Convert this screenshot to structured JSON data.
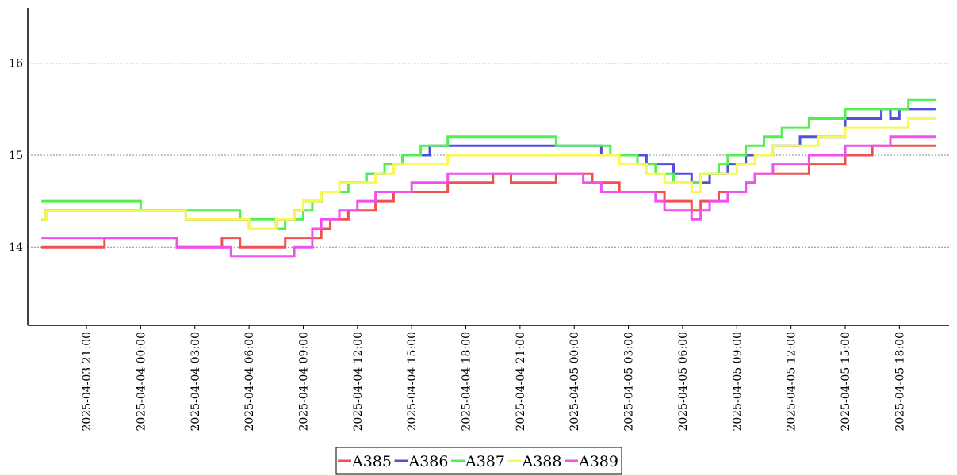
{
  "chart_data": {
    "type": "line",
    "line_shape": "step",
    "title": "",
    "xlabel": "",
    "ylabel": "",
    "ylim": [
      13.15,
      16.6
    ],
    "y_ticks": [
      14,
      15,
      16
    ],
    "y_tick_labels": [
      "14",
      "15",
      "16"
    ],
    "x_ticks": [
      "2025-04-03 21:00",
      "2025-04-04 00:00",
      "2025-04-04 03:00",
      "2025-04-04 06:00",
      "2025-04-04 09:00",
      "2025-04-04 12:00",
      "2025-04-04 15:00",
      "2025-04-04 18:00",
      "2025-04-04 21:00",
      "2025-04-05 00:00",
      "2025-04-05 03:00",
      "2025-04-05 06:00",
      "2025-04-05 09:00",
      "2025-04-05 12:00",
      "2025-04-05 15:00",
      "2025-04-05 18:00"
    ],
    "x_tick_labels": [
      "2025-04-03  21:00",
      "2025-04-04  00:00",
      "2025-04-04  03:00",
      "2025-04-04  06:00",
      "2025-04-04  09:00",
      "2025-04-04  12:00",
      "2025-04-04  15:00",
      "2025-04-04  18:00",
      "2025-04-04  21:00",
      "2025-04-05  00:00",
      "2025-04-05  03:00",
      "2025-04-05  06:00",
      "2025-04-05  09:00",
      "2025-04-05  12:00",
      "2025-04-05  15:00",
      "2025-04-05  18:00"
    ],
    "xlim": [
      "2025-04-03 17:45",
      "2025-04-05 20:45"
    ],
    "grid": "horizontal dotted",
    "legend_position": "bottom-center",
    "series": [
      {
        "name": "A385",
        "color": "#f05050",
        "x": [
          "2025-04-03 18:30",
          "2025-04-03 22:00",
          "2025-04-04 01:30",
          "2025-04-04 02:00",
          "2025-04-04 04:00",
          "2025-04-04 04:30",
          "2025-04-04 05:30",
          "2025-04-04 07:30",
          "2025-04-04 08:00",
          "2025-04-04 09:30",
          "2025-04-04 10:00",
          "2025-04-04 10:30",
          "2025-04-04 11:30",
          "2025-04-04 13:00",
          "2025-04-04 14:00",
          "2025-04-04 15:30",
          "2025-04-04 17:00",
          "2025-04-04 19:30",
          "2025-04-04 20:30",
          "2025-04-04 23:00",
          "2025-04-05 01:00",
          "2025-04-05 02:30",
          "2025-04-05 05:00",
          "2025-04-05 06:00",
          "2025-04-05 06:30",
          "2025-04-05 07:00",
          "2025-04-05 07:30",
          "2025-04-05 08:00",
          "2025-04-05 08:30",
          "2025-04-05 09:30",
          "2025-04-05 10:00",
          "2025-04-05 11:30",
          "2025-04-05 13:00",
          "2025-04-05 14:00",
          "2025-04-05 15:00",
          "2025-04-05 16:30",
          "2025-04-05 17:30",
          "2025-04-05 20:00"
        ],
        "values": [
          14.0,
          14.1,
          14.1,
          14.0,
          14.0,
          14.1,
          14.0,
          14.0,
          14.1,
          14.1,
          14.2,
          14.3,
          14.4,
          14.5,
          14.6,
          14.6,
          14.7,
          14.8,
          14.7,
          14.8,
          14.7,
          14.6,
          14.5,
          14.5,
          14.4,
          14.5,
          14.5,
          14.6,
          14.6,
          14.7,
          14.8,
          14.8,
          14.9,
          14.9,
          15.0,
          15.1,
          15.1,
          15.1
        ]
      },
      {
        "name": "A386",
        "color": "#5050e0",
        "x": [
          "2025-04-03 18:30",
          "2025-04-03 18:45",
          "2025-04-04 02:30",
          "2025-04-04 06:00",
          "2025-04-04 07:30",
          "2025-04-04 08:30",
          "2025-04-04 09:00",
          "2025-04-04 10:00",
          "2025-04-04 11:00",
          "2025-04-04 12:30",
          "2025-04-04 13:30",
          "2025-04-04 14:30",
          "2025-04-04 16:00",
          "2025-04-05 01:30",
          "2025-04-05 04:00",
          "2025-04-05 05:30",
          "2025-04-05 06:30",
          "2025-04-05 07:30",
          "2025-04-05 08:30",
          "2025-04-05 09:30",
          "2025-04-05 11:00",
          "2025-04-05 12:30",
          "2025-04-05 15:00",
          "2025-04-05 17:00",
          "2025-04-05 17:30",
          "2025-04-05 18:00",
          "2025-04-05 20:00"
        ],
        "values": [
          14.3,
          14.4,
          14.3,
          14.2,
          14.3,
          14.4,
          14.5,
          14.6,
          14.7,
          14.8,
          14.9,
          15.0,
          15.1,
          15.0,
          14.9,
          14.8,
          14.7,
          14.8,
          14.9,
          15.0,
          15.1,
          15.2,
          15.4,
          15.5,
          15.4,
          15.5,
          15.5
        ]
      },
      {
        "name": "A387",
        "color": "#50f050",
        "x": [
          "2025-04-03 18:30",
          "2025-04-04 00:00",
          "2025-04-04 03:00",
          "2025-04-04 05:30",
          "2025-04-04 07:30",
          "2025-04-04 08:00",
          "2025-04-04 09:00",
          "2025-04-04 09:30",
          "2025-04-04 10:00",
          "2025-04-04 11:30",
          "2025-04-04 12:30",
          "2025-04-04 13:30",
          "2025-04-04 14:30",
          "2025-04-04 15:30",
          "2025-04-04 16:30",
          "2025-04-04 17:00",
          "2025-04-04 23:00",
          "2025-04-05 02:00",
          "2025-04-05 03:30",
          "2025-04-05 04:30",
          "2025-04-05 05:30",
          "2025-04-05 07:00",
          "2025-04-05 08:00",
          "2025-04-05 08:30",
          "2025-04-05 09:30",
          "2025-04-05 10:30",
          "2025-04-05 11:30",
          "2025-04-05 13:00",
          "2025-04-05 15:00",
          "2025-04-05 18:30",
          "2025-04-05 20:00"
        ],
        "values": [
          14.5,
          14.4,
          14.4,
          14.3,
          14.2,
          14.3,
          14.4,
          14.5,
          14.6,
          14.7,
          14.8,
          14.9,
          15.0,
          15.1,
          15.1,
          15.2,
          15.1,
          15.0,
          14.9,
          14.8,
          14.7,
          14.8,
          14.9,
          15.0,
          15.1,
          15.2,
          15.3,
          15.4,
          15.5,
          15.6,
          15.6
        ]
      },
      {
        "name": "A388",
        "color": "#f8f850",
        "x": [
          "2025-04-03 18:30",
          "2025-04-03 18:45",
          "2025-04-04 02:30",
          "2025-04-04 06:00",
          "2025-04-04 07:30",
          "2025-04-04 08:30",
          "2025-04-04 09:00",
          "2025-04-04 10:00",
          "2025-04-04 11:00",
          "2025-04-04 13:00",
          "2025-04-04 14:00",
          "2025-04-04 15:30",
          "2025-04-04 17:00",
          "2025-04-04 19:00",
          "2025-04-05 00:00",
          "2025-04-05 02:30",
          "2025-04-05 04:00",
          "2025-04-05 05:00",
          "2025-04-05 06:30",
          "2025-04-05 07:00",
          "2025-04-05 08:00",
          "2025-04-05 09:00",
          "2025-04-05 10:00",
          "2025-04-05 11:00",
          "2025-04-05 12:00",
          "2025-04-05 13:30",
          "2025-04-05 15:00",
          "2025-04-05 16:00",
          "2025-04-05 18:30",
          "2025-04-05 20:00"
        ],
        "values": [
          14.3,
          14.4,
          14.3,
          14.2,
          14.3,
          14.4,
          14.5,
          14.6,
          14.7,
          14.8,
          14.9,
          14.9,
          15.0,
          15.0,
          15.0,
          14.9,
          14.8,
          14.7,
          14.6,
          14.8,
          14.8,
          14.9,
          15.0,
          15.1,
          15.1,
          15.2,
          15.3,
          15.3,
          15.4,
          15.4
        ]
      },
      {
        "name": "A389",
        "color": "#f050f0",
        "x": [
          "2025-04-03 18:30",
          "2025-04-04 02:00",
          "2025-04-04 03:30",
          "2025-04-04 05:00",
          "2025-04-04 08:00",
          "2025-04-04 08:30",
          "2025-04-04 09:30",
          "2025-04-04 10:00",
          "2025-04-04 11:00",
          "2025-04-04 12:00",
          "2025-04-04 13:00",
          "2025-04-04 15:00",
          "2025-04-04 17:00",
          "2025-04-04 19:00",
          "2025-04-05 00:30",
          "2025-04-05 01:30",
          "2025-04-05 02:30",
          "2025-04-05 04:30",
          "2025-04-05 05:00",
          "2025-04-05 06:30",
          "2025-04-05 07:00",
          "2025-04-05 07:30",
          "2025-04-05 08:30",
          "2025-04-05 09:30",
          "2025-04-05 10:00",
          "2025-04-05 11:00",
          "2025-04-05 13:00",
          "2025-04-05 15:00",
          "2025-04-05 16:30",
          "2025-04-05 17:30",
          "2025-04-05 20:00"
        ],
        "values": [
          14.1,
          14.0,
          14.0,
          13.9,
          13.9,
          14.0,
          14.2,
          14.3,
          14.4,
          14.5,
          14.6,
          14.7,
          14.8,
          14.8,
          14.7,
          14.6,
          14.6,
          14.5,
          14.4,
          14.3,
          14.4,
          14.5,
          14.6,
          14.7,
          14.8,
          14.9,
          15.0,
          15.1,
          15.1,
          15.2,
          15.2
        ]
      }
    ]
  }
}
